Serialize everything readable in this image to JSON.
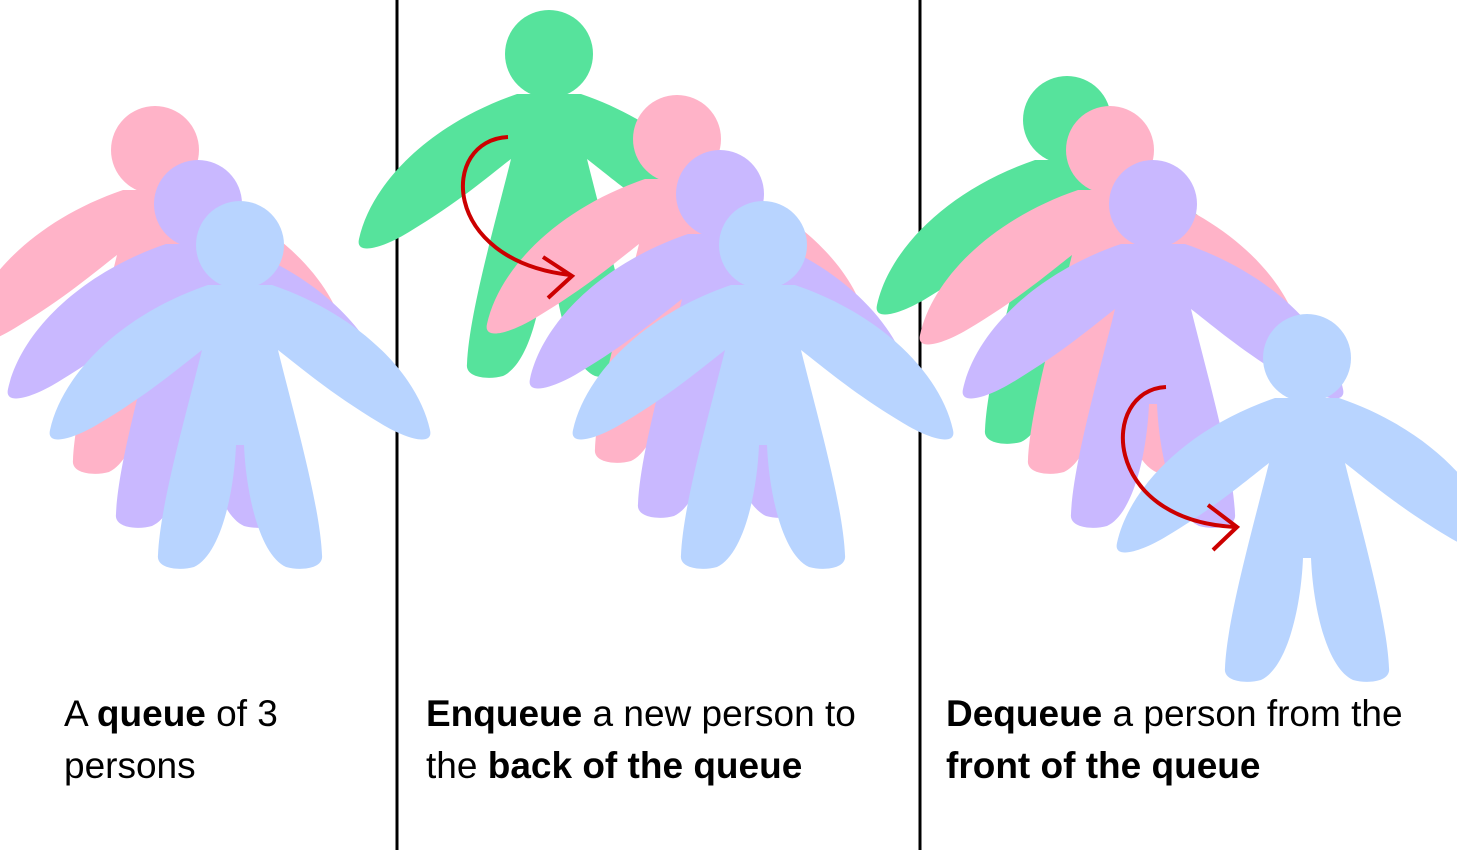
{
  "colors": {
    "pink": "#ffb3c8",
    "purple": "#c9b8ff",
    "blue": "#b8d4ff",
    "green": "#56e39c",
    "arrow": "#cc0000",
    "divider": "#000000"
  },
  "icons": {
    "person": "person-icon",
    "arrow": "curved-arrow-icon"
  },
  "panels": [
    {
      "caption": [
        {
          "text": "A ",
          "bold": false
        },
        {
          "text": "queue",
          "bold": true
        },
        {
          "text": " of 3 persons",
          "bold": false
        }
      ],
      "persons": [
        "pink",
        "purple",
        "blue"
      ]
    },
    {
      "caption": [
        {
          "text": "Enqueue",
          "bold": true
        },
        {
          "text": " a new person to the ",
          "bold": false
        },
        {
          "text": "back of the queue",
          "bold": true
        }
      ],
      "persons": [
        "green",
        "pink",
        "purple",
        "blue"
      ]
    },
    {
      "caption": [
        {
          "text": "Dequeue",
          "bold": true
        },
        {
          "text": " a person from the ",
          "bold": false
        },
        {
          "text": "front of the queue",
          "bold": true
        }
      ],
      "persons": [
        "green",
        "pink",
        "purple",
        "blue"
      ]
    }
  ]
}
